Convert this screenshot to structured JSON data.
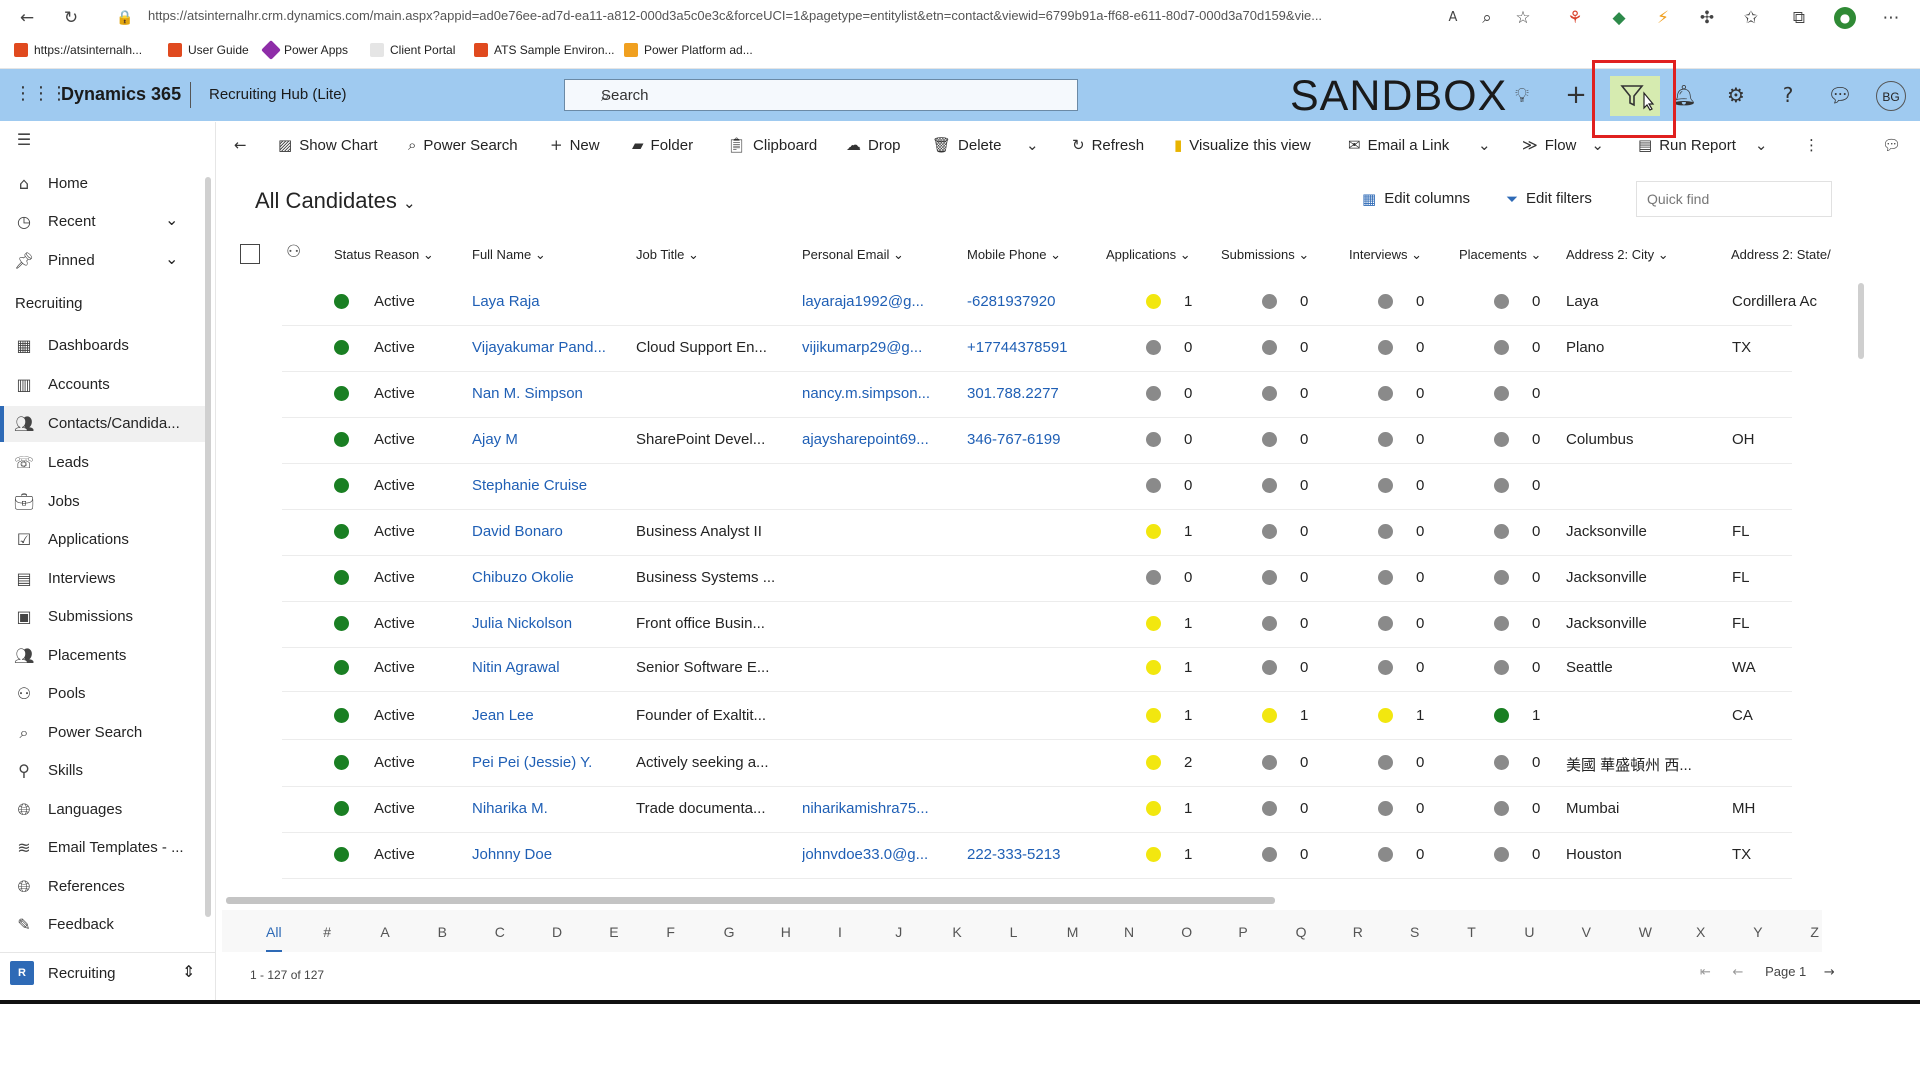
{
  "browser": {
    "url": "https://atsinternalhr.crm.dynamics.com/main.aspx?appid=ad0e76ee-ad7d-ea11-a812-000d3a5c0e3c&forceUCI=1&pagetype=entitylist&etn=contact&viewid=6799b91a-ff68-e611-80d7-000d3a70d159&vie...",
    "bookmarks": [
      "https://atsinternalh...",
      "User Guide",
      "Power Apps",
      "Client Portal",
      "ATS Sample Environ...",
      "Power Platform ad..."
    ]
  },
  "header": {
    "product": "Dynamics 365",
    "app_name": "Recruiting Hub (Lite)",
    "search_placeholder": "Search",
    "environment_label": "SANDBOX",
    "avatar_initials": "BG"
  },
  "nav": {
    "home": "Home",
    "recent": "Recent",
    "pinned": "Pinned",
    "group_title": "Recruiting",
    "items": [
      "Dashboards",
      "Accounts",
      "Contacts/Candida...",
      "Leads",
      "Jobs",
      "Applications",
      "Interviews",
      "Submissions",
      "Placements",
      "Pools",
      "Power Search",
      "Skills",
      "Languages",
      "Email Templates - ...",
      "References",
      "Feedback"
    ],
    "area_badge": "R",
    "area_label": "Recruiting"
  },
  "commands": {
    "show_chart": "Show Chart",
    "power_search": "Power Search",
    "new": "New",
    "folder": "Folder",
    "clipboard": "Clipboard",
    "drop": "Drop",
    "delete": "Delete",
    "refresh": "Refresh",
    "visualize": "Visualize this view",
    "email_link": "Email a Link",
    "flow": "Flow",
    "run_report": "Run Report"
  },
  "view": {
    "title": "All Candidates",
    "edit_columns": "Edit columns",
    "edit_filters": "Edit filters",
    "quick_find_placeholder": "Quick find"
  },
  "grid": {
    "columns": [
      "Status Reason",
      "Full Name",
      "Job Title",
      "Personal Email",
      "Mobile Phone",
      "Applications",
      "Submissions",
      "Interviews",
      "Placements",
      "Address 2: City",
      "Address 2: State/"
    ],
    "rows": [
      {
        "status": "Active",
        "name": "Laya Raja",
        "job": "",
        "email": "layaraja1992@g...",
        "phone": "-6281937920",
        "apps": "1",
        "subs": "0",
        "ints": "0",
        "plcs": "0",
        "city": "Laya",
        "state": "Cordillera Ac"
      },
      {
        "status": "Active",
        "name": "Vijayakumar Pand...",
        "job": "Cloud Support En...",
        "email": "vijikumarp29@g...",
        "phone": "+17744378591",
        "apps": "0",
        "subs": "0",
        "ints": "0",
        "plcs": "0",
        "city": "Plano",
        "state": "TX"
      },
      {
        "status": "Active",
        "name": "Nan M. Simpson",
        "job": "",
        "email": "nancy.m.simpson...",
        "phone": "301.788.2277",
        "apps": "0",
        "subs": "0",
        "ints": "0",
        "plcs": "0",
        "city": "",
        "state": ""
      },
      {
        "status": "Active",
        "name": "Ajay M",
        "job": "SharePoint Devel...",
        "email": "ajaysharepoint69...",
        "phone": "346-767-6199",
        "apps": "0",
        "subs": "0",
        "ints": "0",
        "plcs": "0",
        "city": "Columbus",
        "state": "OH"
      },
      {
        "status": "Active",
        "name": "Stephanie Cruise",
        "job": "",
        "email": "",
        "phone": "",
        "apps": "0",
        "subs": "0",
        "ints": "0",
        "plcs": "0",
        "city": "",
        "state": ""
      },
      {
        "status": "Active",
        "name": "David Bonaro",
        "job": "Business Analyst II",
        "email": "",
        "phone": "",
        "apps": "1",
        "subs": "0",
        "ints": "0",
        "plcs": "0",
        "city": "Jacksonville",
        "state": "FL"
      },
      {
        "status": "Active",
        "name": "Chibuzo Okolie",
        "job": "Business Systems ...",
        "email": "",
        "phone": "",
        "apps": "0",
        "subs": "0",
        "ints": "0",
        "plcs": "0",
        "city": "Jacksonville",
        "state": "FL"
      },
      {
        "status": "Active",
        "name": "Julia Nickolson",
        "job": "Front office Busin...",
        "email": "",
        "phone": "",
        "apps": "1",
        "subs": "0",
        "ints": "0",
        "plcs": "0",
        "city": "Jacksonville",
        "state": "FL"
      },
      {
        "status": "Active",
        "name": "Nitin Agrawal",
        "job": "Senior Software E...",
        "email": "",
        "phone": "",
        "apps": "1",
        "subs": "0",
        "ints": "0",
        "plcs": "0",
        "city": "Seattle",
        "state": "WA"
      },
      {
        "status": "Active",
        "name": "Jean Lee",
        "job": "Founder of Exaltit...",
        "email": "",
        "phone": "",
        "apps": "1",
        "subs": "1",
        "ints": "1",
        "plcs": "1",
        "city": "",
        "state": "CA"
      },
      {
        "status": "Active",
        "name": "Pei Pei (Jessie) Y.",
        "job": "Actively seeking a...",
        "email": "",
        "phone": "",
        "apps": "2",
        "subs": "0",
        "ints": "0",
        "plcs": "0",
        "city": "美國 華盛頓州 西...",
        "state": ""
      },
      {
        "status": "Active",
        "name": "Niharika M.",
        "job": "Trade documenta...",
        "email": "niharikamishra75...",
        "phone": "",
        "apps": "1",
        "subs": "0",
        "ints": "0",
        "plcs": "0",
        "city": "Mumbai",
        "state": "MH"
      },
      {
        "status": "Active",
        "name": "Johnny Doe",
        "job": "",
        "email": "johnvdoe33.0@g...",
        "phone": "222-333-5213",
        "apps": "1",
        "subs": "0",
        "ints": "0",
        "plcs": "0",
        "city": "Houston",
        "state": "TX"
      }
    ]
  },
  "alphabet": [
    "All",
    "#",
    "A",
    "B",
    "C",
    "D",
    "E",
    "F",
    "G",
    "H",
    "I",
    "J",
    "K",
    "L",
    "M",
    "N",
    "O",
    "P",
    "Q",
    "R",
    "S",
    "T",
    "U",
    "V",
    "W",
    "X",
    "Y",
    "Z"
  ],
  "footer": {
    "record_count": "1 - 127 of 127",
    "page_label": "Page 1"
  },
  "colors": {
    "header_bg": "#9fcaf0",
    "status_active": "#1a7f23",
    "count_positive": "#f2e70f",
    "count_zero": "#8a8a8a",
    "placement_positive": "#1a7f23",
    "link": "#1f5fb5",
    "highlight_box": "#e0201f"
  }
}
